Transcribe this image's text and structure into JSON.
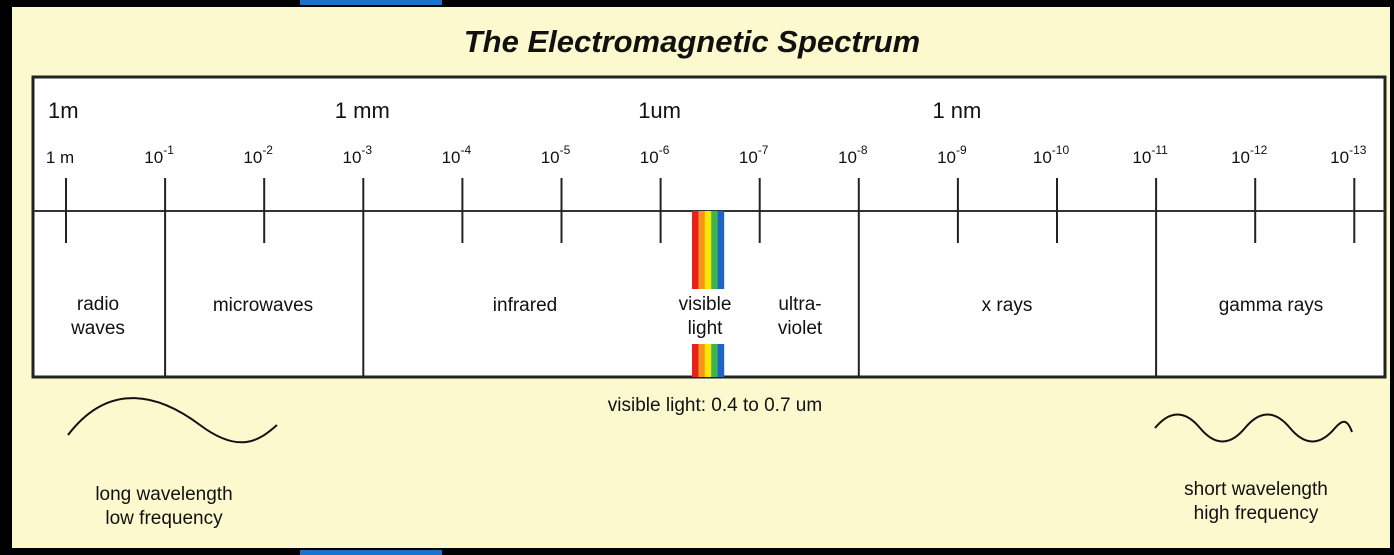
{
  "title": "The Electromagnetic Spectrum",
  "major_labels": [
    {
      "tick": 0,
      "text": "1m"
    },
    {
      "tick": 3,
      "text": "1 mm"
    },
    {
      "tick": 6,
      "text": "1um"
    },
    {
      "tick": 9,
      "text": "1 nm"
    }
  ],
  "ticks": [
    {
      "text": "1 m"
    },
    {
      "base": "10",
      "sup": "-1"
    },
    {
      "base": "10",
      "sup": "-2"
    },
    {
      "base": "10",
      "sup": "-3"
    },
    {
      "base": "10",
      "sup": "-4"
    },
    {
      "base": "10",
      "sup": "-5"
    },
    {
      "base": "10",
      "sup": "-6"
    },
    {
      "base": "10",
      "sup": "-7"
    },
    {
      "base": "10",
      "sup": "-8"
    },
    {
      "base": "10",
      "sup": "-9"
    },
    {
      "base": "10",
      "sup": "-10"
    },
    {
      "base": "10",
      "sup": "-11"
    },
    {
      "base": "10",
      "sup": "-12"
    },
    {
      "base": "10",
      "sup": "-13"
    }
  ],
  "regions": [
    {
      "lines": [
        "radio",
        "waves"
      ]
    },
    {
      "lines": [
        "microwaves"
      ]
    },
    {
      "lines": [
        "infrared"
      ]
    },
    {
      "lines": [
        "visible",
        "light"
      ]
    },
    {
      "lines": [
        "ultra-",
        "violet"
      ]
    },
    {
      "lines": [
        "x rays"
      ]
    },
    {
      "lines": [
        "gamma rays"
      ]
    }
  ],
  "visible_caption": "visible light: 0.4 to 0.7 um",
  "long_wave_label": [
    "long wavelength",
    "low frequency"
  ],
  "short_wave_label": [
    "short wavelength",
    "high frequency"
  ]
}
